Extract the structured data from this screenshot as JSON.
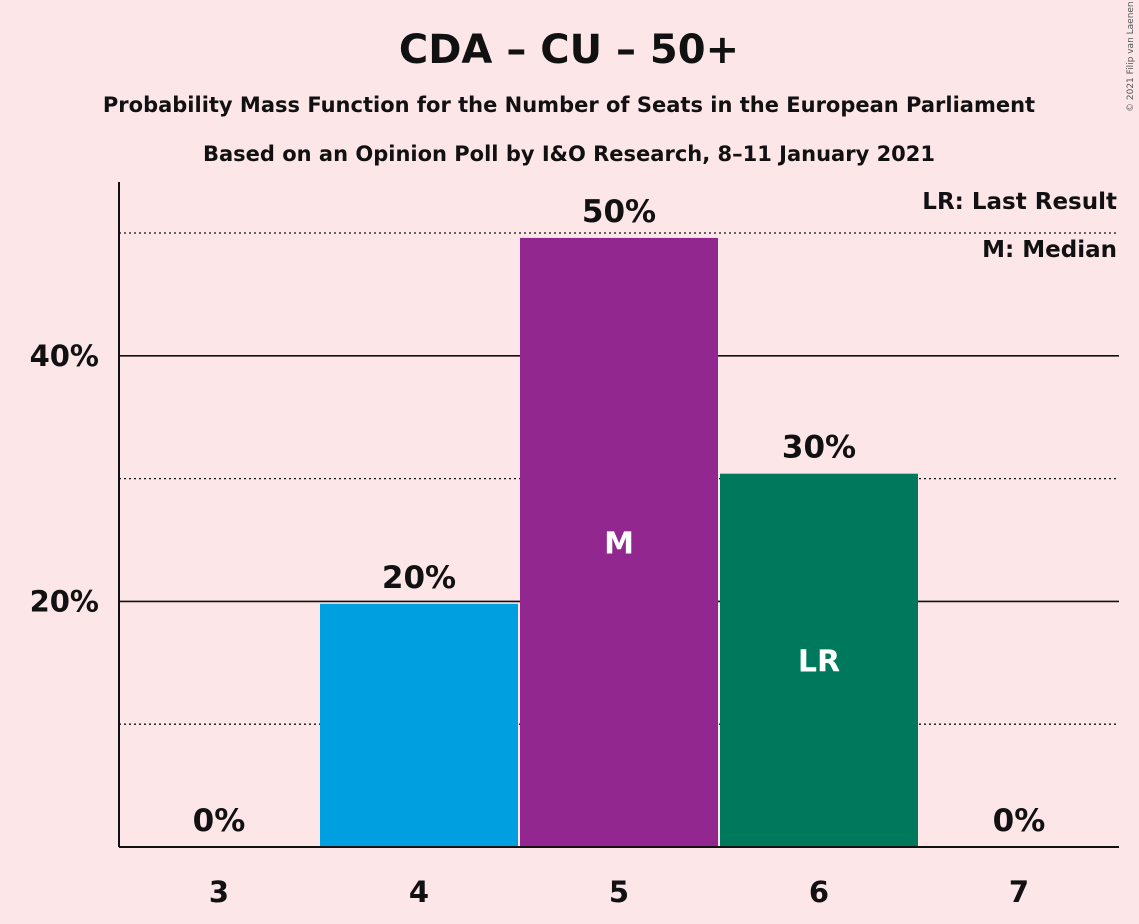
{
  "chart_data": {
    "type": "bar",
    "title": "CDA – CU – 50+",
    "subtitle": "Probability Mass Function for the Number of Seats in the European Parliament",
    "subtitle2": "Based on an Opinion Poll by I&O Research, 8–11 January 2021",
    "copyright": "© 2021 Filip van Laenen",
    "legend": [
      "LR: Last Result",
      "M: Median"
    ],
    "legend_position": "top-right",
    "categories": [
      "3",
      "4",
      "5",
      "6",
      "7"
    ],
    "values": [
      0,
      19.8,
      49.6,
      30.4,
      0
    ],
    "value_labels": [
      "0%",
      "20%",
      "50%",
      "30%",
      "0%"
    ],
    "bar_markers": [
      "",
      "",
      "M",
      "LR",
      ""
    ],
    "colors": [
      "#009fe0",
      "#009fe0",
      "#92278f",
      "#00785c",
      "#009fe0"
    ],
    "ylim": [
      0,
      54
    ],
    "yticks": [
      20,
      40
    ],
    "ytick_labels": [
      "20%",
      "40%"
    ],
    "minor_gridlines": [
      10,
      30,
      50
    ],
    "grid": true
  }
}
